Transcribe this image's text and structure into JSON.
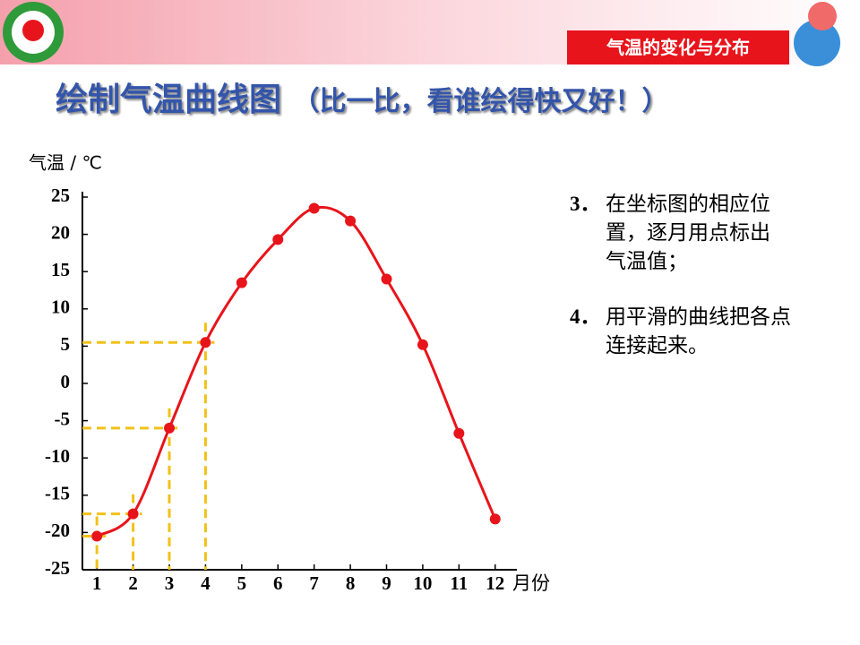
{
  "header": {
    "badge": "气温的变化与分布",
    "title": "绘制气温曲线图",
    "subtitle": "（比一比，看谁绘得快又好！）"
  },
  "steps": [
    {
      "number": "3．",
      "lines": [
        "在坐标图的相应位",
        "置，逐月用点标出",
        "气温值；"
      ]
    },
    {
      "number": "4．",
      "lines": [
        "用平滑的曲线把各点",
        "连接起来。"
      ]
    }
  ],
  "chart_data": {
    "type": "line",
    "y_label": "气温 / ℃",
    "x_label": "月份",
    "x": [
      1,
      2,
      3,
      4,
      5,
      6,
      7,
      8,
      9,
      10,
      11,
      12
    ],
    "series": [
      {
        "color": "#e8141b",
        "values": [
          -20.5,
          -17.5,
          -6,
          5.5,
          13.5,
          19.3,
          23.5,
          21.8,
          14,
          5.2,
          -6.7,
          -18.2
        ]
      }
    ],
    "guides": [
      0,
      1,
      2,
      3
    ],
    "xlim": [
      0.6,
      12.6
    ],
    "xticks": [
      1,
      2,
      3,
      4,
      5,
      6,
      7,
      8,
      9,
      10,
      11,
      12
    ],
    "ylim": [
      -25,
      25
    ],
    "yticks": [
      25,
      20,
      15,
      10,
      5,
      0,
      -5,
      -10,
      -15,
      -20,
      -25
    ]
  }
}
